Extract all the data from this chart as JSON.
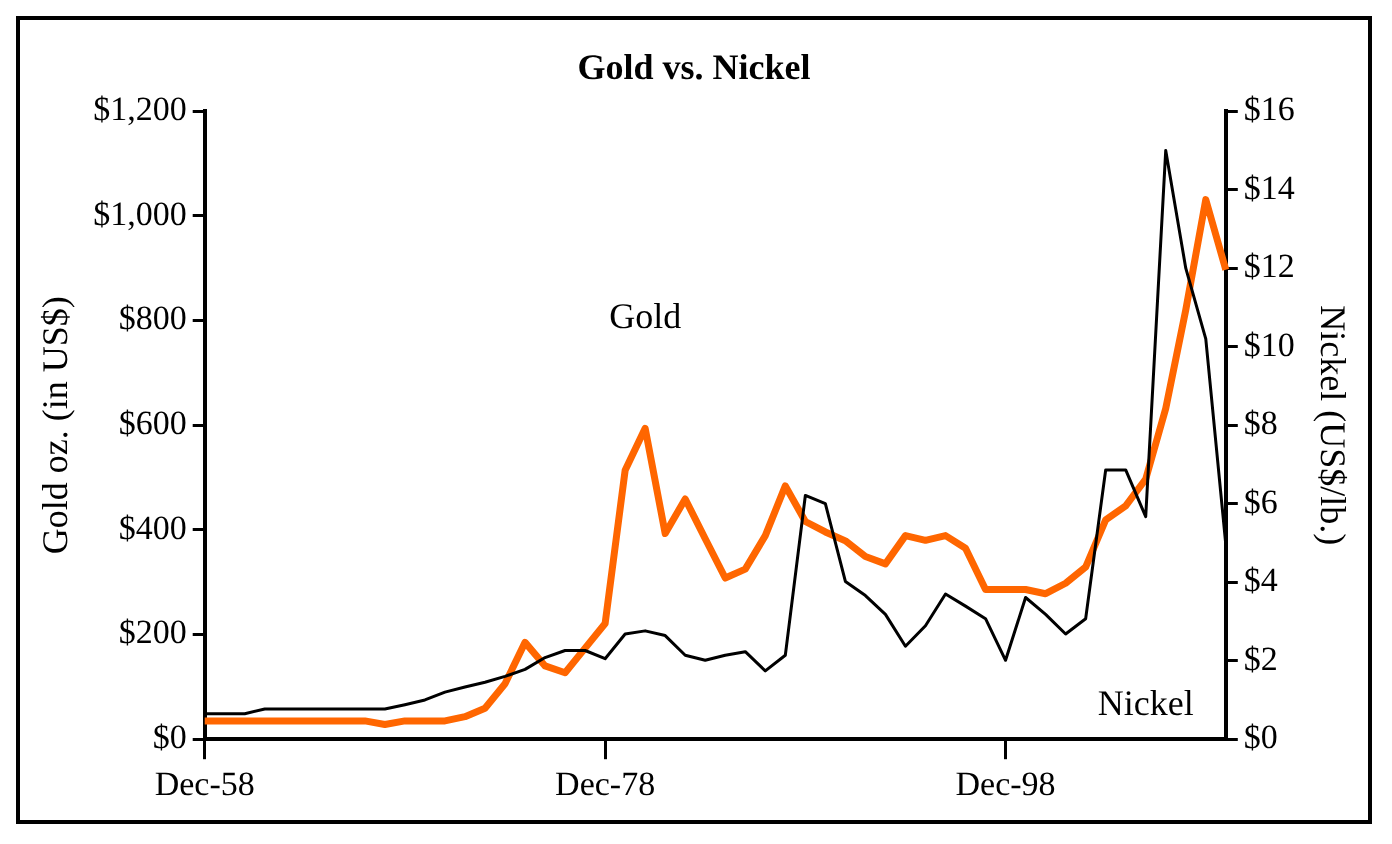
{
  "chart_data": {
    "type": "line",
    "title": "Gold vs. Nickel",
    "ylabel": "Gold oz. (in US$)",
    "y2label": "Nickel (US$/lb.)",
    "categories": [
      "Dec-58",
      null,
      null,
      null,
      null,
      null,
      null,
      null,
      null,
      null,
      null,
      null,
      null,
      null,
      null,
      null,
      null,
      null,
      null,
      null,
      "Dec-78",
      null,
      null,
      null,
      null,
      null,
      null,
      null,
      null,
      null,
      null,
      null,
      null,
      null,
      null,
      null,
      null,
      null,
      null,
      null,
      "Dec-98",
      null,
      null,
      null,
      null,
      null,
      null,
      null,
      null,
      null,
      null,
      null
    ],
    "ylim": [
      0,
      1200
    ],
    "yticks": [
      {
        "value": 0,
        "label": "$0"
      },
      {
        "value": 200,
        "label": "$200"
      },
      {
        "value": 400,
        "label": "$400"
      },
      {
        "value": 600,
        "label": "$600"
      },
      {
        "value": 800,
        "label": "$800"
      },
      {
        "value": 1000,
        "label": "$1,000"
      },
      {
        "value": 1200,
        "label": "$1,200"
      }
    ],
    "y2lim": [
      0,
      16
    ],
    "y2ticks": [
      {
        "value": 0,
        "label": "$0"
      },
      {
        "value": 2,
        "label": "$2"
      },
      {
        "value": 4,
        "label": "$4"
      },
      {
        "value": 6,
        "label": "$6"
      },
      {
        "value": 8,
        "label": "$8"
      },
      {
        "value": 10,
        "label": "$10"
      },
      {
        "value": 12,
        "label": "$12"
      },
      {
        "value": 14,
        "label": "$14"
      },
      {
        "value": 16,
        "label": "$16"
      }
    ],
    "grid": false,
    "legend": false,
    "marker": "none",
    "series": [
      {
        "name": "Gold",
        "color": "#ff6600",
        "values": [
          35,
          35,
          35,
          35,
          35,
          35,
          35,
          35,
          35,
          28,
          35,
          35,
          35,
          43,
          59,
          106,
          185,
          140,
          127,
          174,
          221,
          514,
          594,
          393,
          459,
          383,
          308,
          325,
          389,
          484,
          416,
          396,
          379,
          349,
          335,
          389,
          380,
          389,
          365,
          286,
          286,
          286,
          278,
          298,
          329,
          419,
          446,
          497,
          632,
          820,
          1031,
          897
        ]
      },
      {
        "name": "Nickel",
        "color": "#000000",
        "axis": "y2",
        "values": [
          0.65,
          0.65,
          0.65,
          0.77,
          0.77,
          0.77,
          0.77,
          0.77,
          0.77,
          0.77,
          0.88,
          1.0,
          1.2,
          1.33,
          1.45,
          1.6,
          1.78,
          2.08,
          2.26,
          2.26,
          2.05,
          2.68,
          2.76,
          2.64,
          2.14,
          2.01,
          2.14,
          2.23,
          1.74,
          2.14,
          6.21,
          6.0,
          4.02,
          3.66,
          3.18,
          2.37,
          2.89,
          3.7,
          3.39,
          3.07,
          2.01,
          3.61,
          3.18,
          2.68,
          3.07,
          6.86,
          6.86,
          5.67,
          15.0,
          12.0,
          10.2,
          4.96
        ]
      }
    ]
  }
}
